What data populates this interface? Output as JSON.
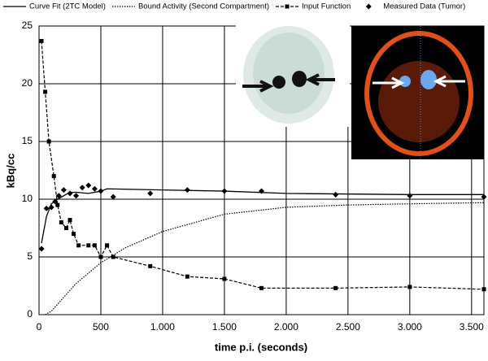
{
  "chart_data": {
    "type": "line",
    "x_label": "time p.i. (seconds)",
    "y_label": "kBq/cc",
    "xlim": [
      0,
      3600
    ],
    "ylim": [
      0,
      25
    ],
    "xticks": [
      0,
      500,
      {
        "value": 1000,
        "label": "1.000"
      },
      {
        "value": 1500,
        "label": "1.500"
      },
      {
        "value": 2000,
        "label": "2.000"
      },
      {
        "value": 2500,
        "label": "2.500"
      },
      {
        "value": 3000,
        "label": "3.000"
      },
      {
        "value": 3500,
        "label": "3.500"
      }
    ],
    "yticks": [
      0,
      5,
      10,
      15,
      20,
      25
    ],
    "grid": true,
    "series": [
      {
        "name": "Curve Fit (2TC Model)",
        "color": "#000000",
        "line": "solid",
        "marker": "none",
        "x": [
          20,
          60,
          100,
          150,
          200,
          250,
          300,
          400,
          500,
          550,
          1000,
          1500,
          2000,
          3000,
          3600
        ],
        "values": [
          6.2,
          8.5,
          9.6,
          10,
          10.3,
          10.6,
          10.6,
          10.5,
          10.7,
          10.9,
          10.8,
          10.7,
          10.5,
          10.4,
          10.4
        ]
      },
      {
        "name": "Bound Activity (Second Compartment)",
        "color": "#000000",
        "line": "dotted",
        "marker": "none",
        "x": [
          50,
          100,
          200,
          300,
          500,
          700,
          1000,
          1500,
          2000,
          2500,
          3000,
          3600
        ],
        "values": [
          0,
          0.3,
          1.5,
          2.7,
          4.5,
          5.8,
          7.2,
          8.7,
          9.3,
          9.5,
          9.6,
          9.7
        ]
      },
      {
        "name": "Input Function",
        "color": "#000000",
        "line": "dashed",
        "marker": "square",
        "x": [
          20,
          50,
          80,
          120,
          150,
          180,
          220,
          250,
          280,
          320,
          400,
          450,
          500,
          550,
          600,
          900,
          1200,
          1500,
          1800,
          2400,
          3000,
          3600
        ],
        "values": [
          23.7,
          19.3,
          15,
          12,
          9.5,
          8,
          7.5,
          8.2,
          7,
          6,
          6,
          6,
          5,
          6,
          5,
          4.2,
          3.3,
          3.1,
          2.3,
          2.3,
          2.4,
          2.2
        ]
      },
      {
        "name": "Measured Data (Tumor)",
        "color": "#000000",
        "line": "none",
        "marker": "diamond",
        "x": [
          20,
          60,
          100,
          130,
          160,
          200,
          250,
          300,
          350,
          400,
          450,
          500,
          600,
          900,
          1200,
          1500,
          1800,
          2400,
          3000,
          3600
        ],
        "values": [
          5.7,
          9.2,
          9.3,
          9.8,
          10.3,
          10.8,
          10.5,
          10.3,
          11,
          11.2,
          10.9,
          10.7,
          10.2,
          10.5,
          10.8,
          10.7,
          10.7,
          10.4,
          10.3,
          10.2
        ]
      }
    ]
  }
}
